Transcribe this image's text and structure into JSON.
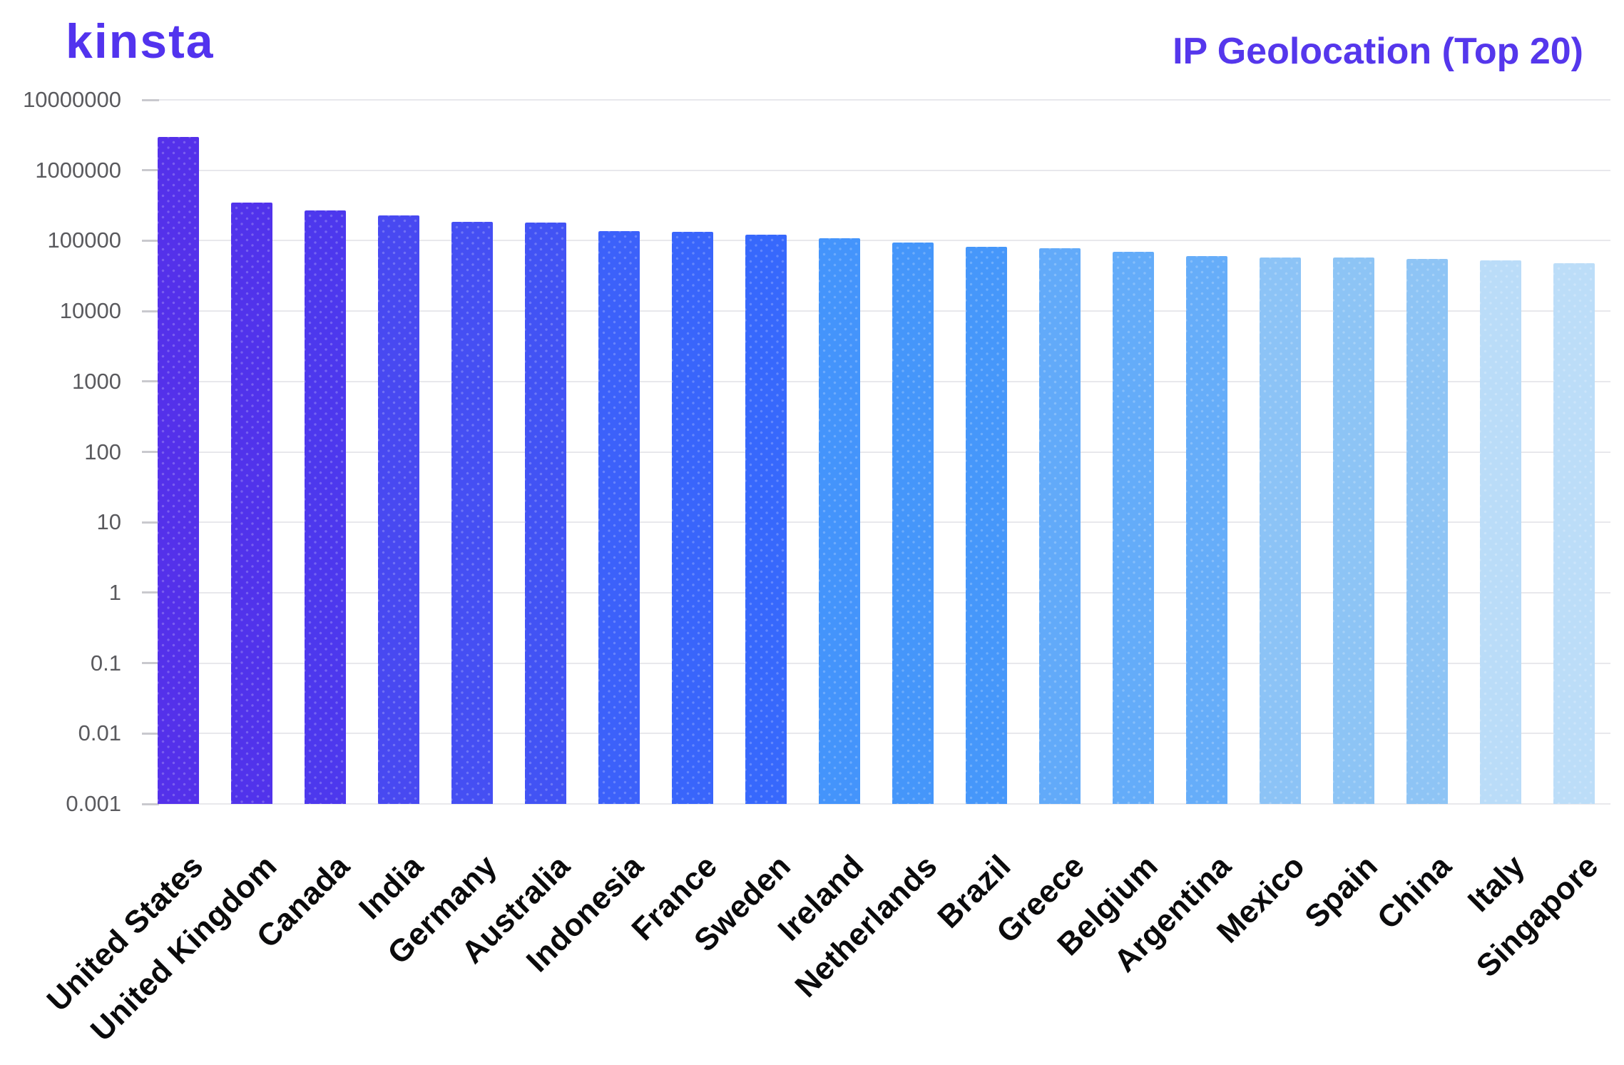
{
  "brand": {
    "logo_text": "kinsta",
    "logo_color": "#5233EE"
  },
  "header": {
    "title": "IP Geolocation (Top 20)",
    "title_color": "#5537EC"
  },
  "axis": {
    "y_label_color": "#5A5A5E",
    "x_label_color": "#0B0B0C",
    "grid_color": "#E8E8EC",
    "tick_color": "#C9C9CE"
  },
  "chart_data": {
    "type": "bar",
    "title": "IP Geolocation (Top 20)",
    "xlabel": "",
    "ylabel": "",
    "y_scale": "log10",
    "ylim": [
      0.001,
      10000000
    ],
    "grid": true,
    "legend": "none",
    "y_tick_labels": [
      "10000000",
      "1000000",
      "100000",
      "10000",
      "1000",
      "100",
      "10",
      "1",
      "0.1",
      "0.01",
      "0.001"
    ],
    "categories": [
      "United States",
      "United Kingdom",
      "Canada",
      "India",
      "Germany",
      "Australia",
      "Indonesia",
      "France",
      "Sweden",
      "Ireland",
      "Netherlands",
      "Brazil",
      "Greece",
      "Belgium",
      "Argentina",
      "Mexico",
      "Spain",
      "China",
      "Italy",
      "Singapore"
    ],
    "values": [
      3000000,
      345000,
      272000,
      228000,
      186000,
      181000,
      138000,
      134000,
      122000,
      107000,
      94000,
      82000,
      78000,
      69000,
      60000,
      58000,
      57000,
      55000,
      52000,
      48000
    ],
    "bar_colors": [
      "#5431EA",
      "#5133EB",
      "#4D38ED",
      "#4849F1",
      "#454FF3",
      "#4253F4",
      "#3C61FA",
      "#3965FB",
      "#3768FC",
      "#4494FB",
      "#4596FA",
      "#4697FA",
      "#62AAF9",
      "#64ACF9",
      "#66ADF9",
      "#8CC3F6",
      "#8DC4F5",
      "#8EC4F5",
      "#BADCF8",
      "#BCDDF8"
    ]
  }
}
